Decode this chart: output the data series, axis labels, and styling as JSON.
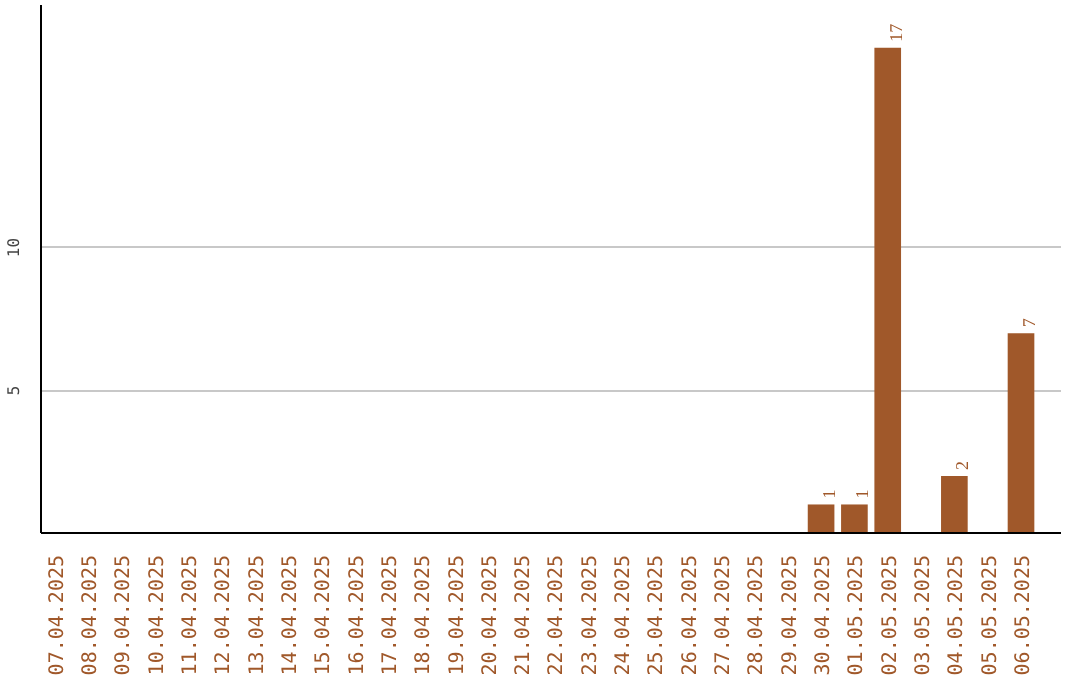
{
  "chart_data": {
    "type": "bar",
    "categories": [
      "07.04.2025",
      "08.04.2025",
      "09.04.2025",
      "10.04.2025",
      "11.04.2025",
      "12.04.2025",
      "13.04.2025",
      "14.04.2025",
      "15.04.2025",
      "16.04.2025",
      "17.04.2025",
      "18.04.2025",
      "19.04.2025",
      "20.04.2025",
      "21.04.2025",
      "22.04.2025",
      "23.04.2025",
      "24.04.2025",
      "25.04.2025",
      "26.04.2025",
      "27.04.2025",
      "28.04.2025",
      "29.04.2025",
      "30.04.2025",
      "01.05.2025",
      "02.05.2025",
      "03.05.2025",
      "04.05.2025",
      "05.05.2025",
      "06.05.2025"
    ],
    "values": [
      0,
      0,
      0,
      0,
      0,
      0,
      0,
      0,
      0,
      0,
      0,
      0,
      0,
      0,
      0,
      0,
      0,
      0,
      0,
      0,
      0,
      0,
      0,
      1,
      1,
      17,
      0,
      2,
      0,
      7
    ],
    "value_labels": [
      null,
      null,
      null,
      null,
      null,
      null,
      null,
      null,
      null,
      null,
      null,
      null,
      null,
      null,
      null,
      null,
      null,
      null,
      null,
      null,
      null,
      null,
      null,
      "1",
      "1",
      "17",
      null,
      "2",
      null,
      "7"
    ],
    "color": "#a0582a",
    "ylim": [
      0,
      18.5
    ],
    "yticks": [
      5,
      10
    ],
    "grid": "y"
  }
}
